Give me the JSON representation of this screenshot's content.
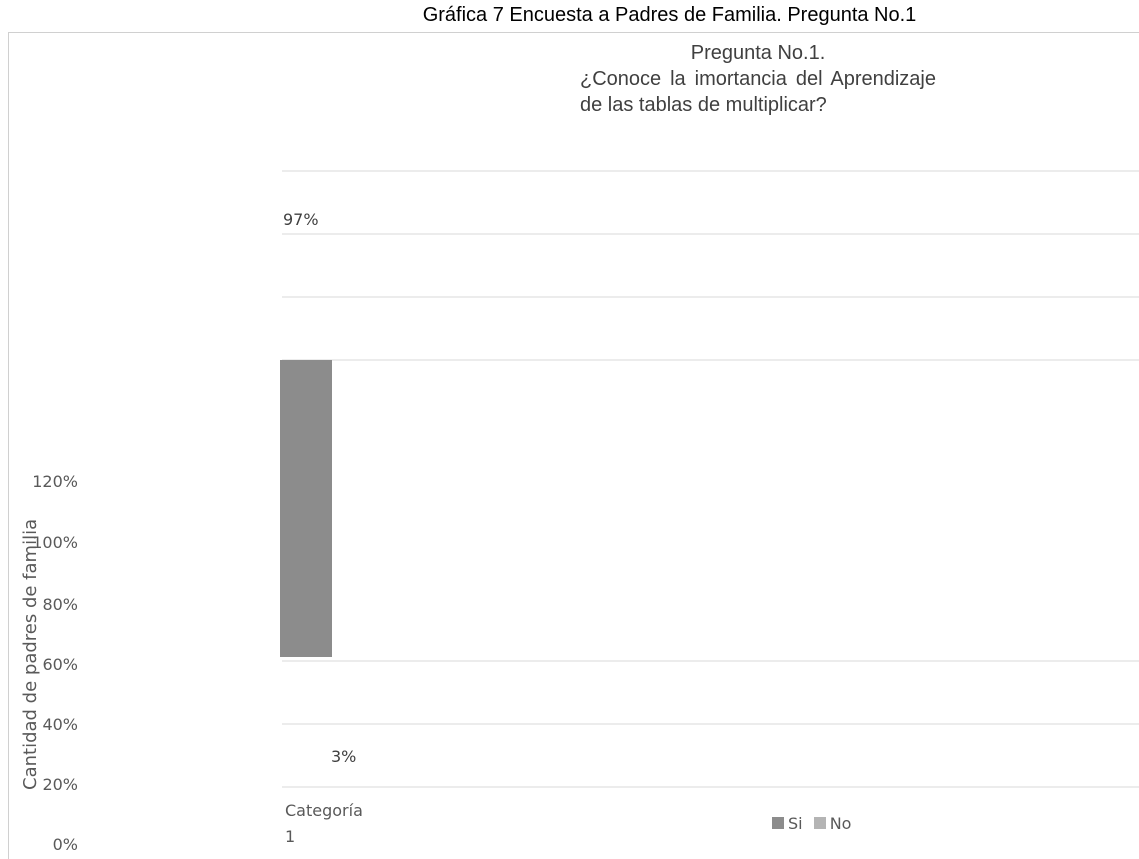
{
  "caption": "Gráfica 7  Encuesta a Padres de Familia. Pregunta No.1",
  "chart_data": {
    "type": "bar",
    "title_line1": "Pregunta No.1.",
    "title_line2": "¿Conoce la imortancia del Aprendizaje de las tablas de multiplicar?",
    "ylabel": "Cantidad de padres de familia",
    "xlabel": "",
    "categories": [
      "Categoría 1"
    ],
    "category_line1": "Categoría",
    "category_line2": "1",
    "y_ticks": [
      "0%",
      "20%",
      "40%",
      "60%",
      "80%",
      "100%",
      "120%"
    ],
    "ylim": [
      0,
      1.2
    ],
    "grid": true,
    "legend_position": "bottom",
    "series": [
      {
        "name": "Si",
        "values": [
          0.97
        ],
        "label": "97%",
        "color": "#8c8c8c"
      },
      {
        "name": "No",
        "values": [
          0.03
        ],
        "label": "3%",
        "color": "#b4b4b4"
      }
    ]
  }
}
